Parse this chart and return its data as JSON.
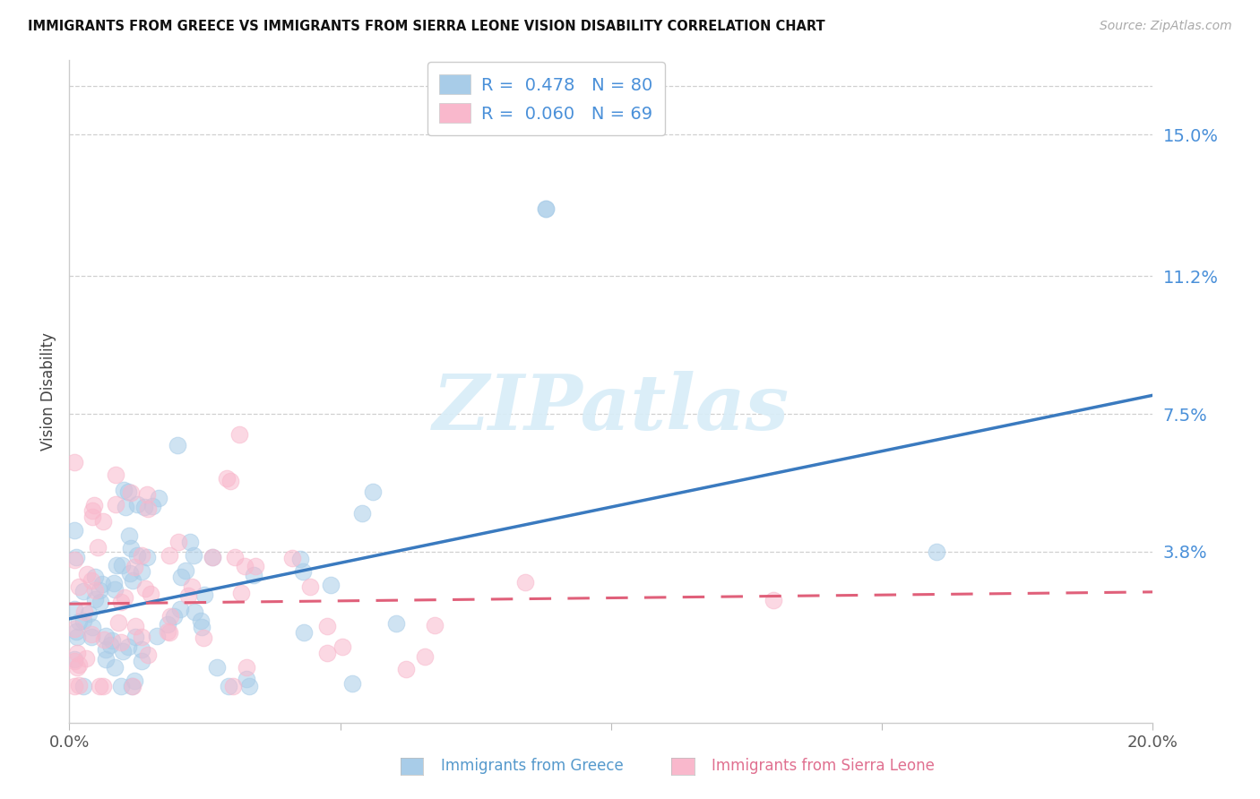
{
  "title": "IMMIGRANTS FROM GREECE VS IMMIGRANTS FROM SIERRA LEONE VISION DISABILITY CORRELATION CHART",
  "source": "Source: ZipAtlas.com",
  "xlabel_greece": "Immigrants from Greece",
  "xlabel_sieraleone": "Immigrants from Sierra Leone",
  "ylabel": "Vision Disability",
  "xlim": [
    0.0,
    0.2
  ],
  "ylim": [
    -0.008,
    0.17
  ],
  "ytick_values": [
    0.038,
    0.075,
    0.112,
    0.15
  ],
  "ytick_labels": [
    "3.8%",
    "7.5%",
    "11.2%",
    "15.0%"
  ],
  "greece_R": 0.478,
  "greece_N": 80,
  "sierraleone_R": 0.06,
  "sierraleone_N": 69,
  "greece_color": "#a8cce8",
  "sierraleone_color": "#f9b8cc",
  "greece_trend_color": "#3a7abf",
  "sierraleone_trend_color": "#e0607a",
  "legend_text_color": "#4a90d9",
  "watermark_color": "#d8edf8",
  "watermark": "ZIPatlas",
  "greece_trend_intercept": 0.02,
  "greece_trend_slope": 0.3,
  "sl_trend_intercept": 0.024,
  "sl_trend_slope": 0.016
}
